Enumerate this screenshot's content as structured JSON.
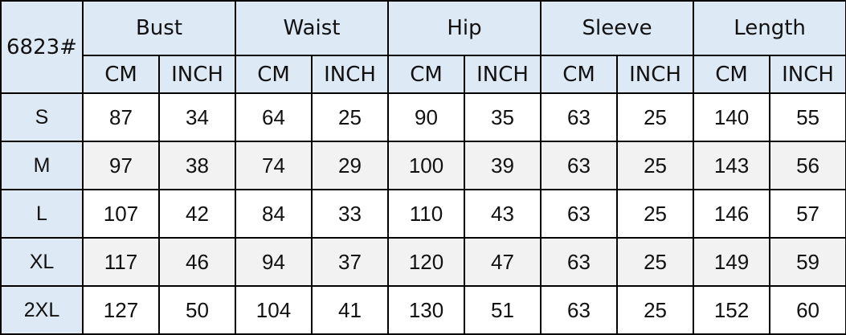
{
  "corner_label": "6823#",
  "groups": [
    "Bust",
    "Waist",
    "Hip",
    "Sleeve",
    "Length"
  ],
  "units": [
    "CM",
    "INCH"
  ],
  "rows": [
    {
      "size": "S",
      "values": [
        "87",
        "34",
        "64",
        "25",
        "90",
        "35",
        "63",
        "25",
        "140",
        "55"
      ]
    },
    {
      "size": "M",
      "values": [
        "97",
        "38",
        "74",
        "29",
        "100",
        "39",
        "63",
        "25",
        "143",
        "56"
      ]
    },
    {
      "size": "L",
      "values": [
        "107",
        "42",
        "84",
        "33",
        "110",
        "43",
        "63",
        "25",
        "146",
        "57"
      ]
    },
    {
      "size": "XL",
      "values": [
        "117",
        "46",
        "94",
        "37",
        "120",
        "47",
        "63",
        "25",
        "149",
        "59"
      ]
    },
    {
      "size": "2XL",
      "values": [
        "127",
        "50",
        "104",
        "41",
        "130",
        "51",
        "63",
        "25",
        "152",
        "60"
      ]
    }
  ],
  "colors": {
    "header_bg": "#dde9f5",
    "alt_row_bg": "#f2f2f2"
  }
}
